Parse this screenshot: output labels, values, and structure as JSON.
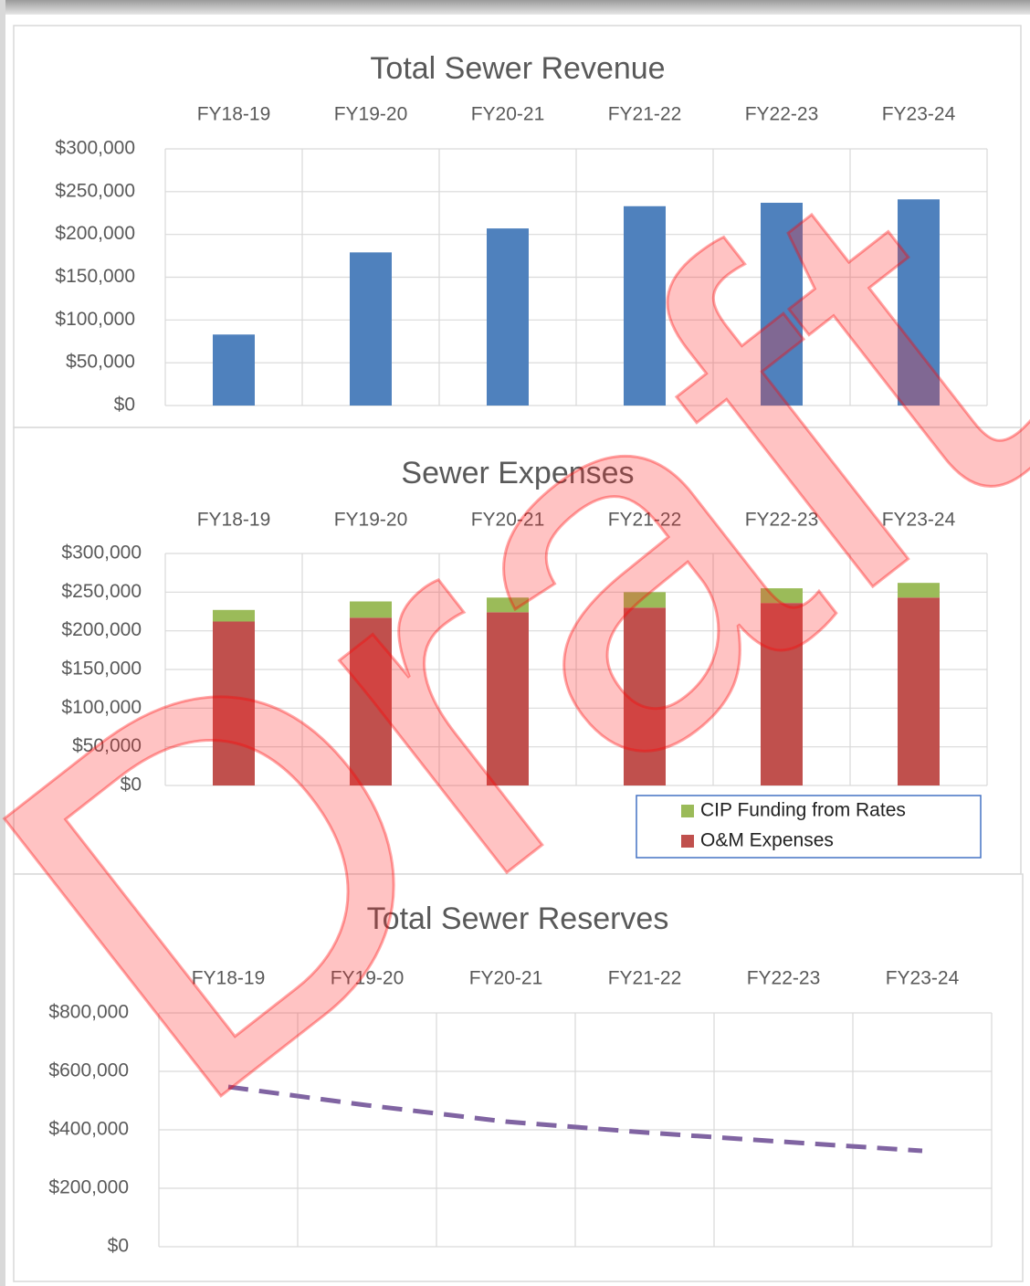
{
  "chart_data": [
    {
      "type": "bar",
      "title": "Total Sewer Revenue",
      "categories": [
        "FY18-19",
        "FY19-20",
        "FY20-21",
        "FY21-22",
        "FY22-23",
        "FY23-24"
      ],
      "values": [
        83000,
        179000,
        207000,
        233000,
        237000,
        241000
      ],
      "color": "#4f81bd",
      "ylim": [
        0,
        300000
      ],
      "yticks": [
        {
          "value": 0,
          "label": "$0"
        },
        {
          "value": 50000,
          "label": "$50,000"
        },
        {
          "value": 100000,
          "label": "$100,000"
        },
        {
          "value": 150000,
          "label": "$150,000"
        },
        {
          "value": 200000,
          "label": "$200,000"
        },
        {
          "value": 250000,
          "label": "$250,000"
        },
        {
          "value": 300000,
          "label": "$300,000"
        }
      ],
      "grid": true
    },
    {
      "type": "stacked_bar",
      "title": "Sewer Expenses",
      "categories": [
        "FY18-19",
        "FY19-20",
        "FY20-21",
        "FY21-22",
        "FY22-23",
        "FY23-24"
      ],
      "series": [
        {
          "name": "O&M Expenses",
          "color": "#c0504d",
          "values": [
            212000,
            217000,
            224000,
            230000,
            236000,
            243000
          ]
        },
        {
          "name": "CIP Funding from Rates",
          "color": "#9bbb59",
          "values": [
            15000,
            21000,
            19000,
            20000,
            19000,
            19000
          ]
        }
      ],
      "ylim": [
        0,
        300000
      ],
      "yticks": [
        {
          "value": 0,
          "label": "$0"
        },
        {
          "value": 50000,
          "label": "$50,000"
        },
        {
          "value": 100000,
          "label": "$100,000"
        },
        {
          "value": 150000,
          "label": "$150,000"
        },
        {
          "value": 200000,
          "label": "$200,000"
        },
        {
          "value": 250000,
          "label": "$250,000"
        },
        {
          "value": 300000,
          "label": "$300,000"
        }
      ],
      "grid": true,
      "legend": "bottom-right"
    },
    {
      "type": "line",
      "title": "Total Sewer Reserves",
      "categories": [
        "FY18-19",
        "FY19-20",
        "FY20-21",
        "FY21-22",
        "FY22-23",
        "FY23-24"
      ],
      "values": [
        547000,
        484000,
        428000,
        391000,
        359000,
        328000
      ],
      "color": "#8064a2",
      "line_style": "dashed",
      "ylim": [
        0,
        800000
      ],
      "yticks": [
        {
          "value": 0,
          "label": "$0"
        },
        {
          "value": 200000,
          "label": "$200,000"
        },
        {
          "value": 400000,
          "label": "$400,000"
        },
        {
          "value": 600000,
          "label": "$600,000"
        },
        {
          "value": 800000,
          "label": "$800,000"
        }
      ],
      "grid": true
    }
  ],
  "watermark": "Draft"
}
